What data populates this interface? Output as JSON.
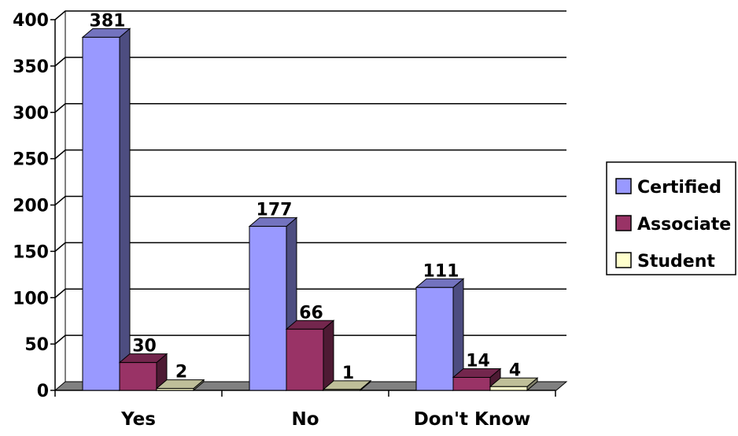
{
  "chart_data": {
    "type": "bar",
    "title": "",
    "xlabel": "",
    "ylabel": "",
    "categories": [
      "Yes",
      "No",
      "Don't Know"
    ],
    "series": [
      {
        "name": "Certified",
        "values": [
          381,
          177,
          111
        ],
        "color": "#9999FF",
        "side_color": "#4D4D80",
        "top_color": "#7373BF"
      },
      {
        "name": "Associate",
        "values": [
          30,
          66,
          14
        ],
        "color": "#993366",
        "side_color": "#4D1A33",
        "top_color": "#73264D"
      },
      {
        "name": "Student",
        "values": [
          2,
          1,
          4
        ],
        "color": "#FFFFCC",
        "side_color": "#80806A",
        "top_color": "#BFBF99"
      }
    ],
    "ylim": [
      0,
      400
    ],
    "yticks": [
      "0",
      "50",
      "100",
      "150",
      "200",
      "250",
      "300",
      "350",
      "400"
    ],
    "grid": true,
    "legend_position": "right",
    "style": "3d-clustered-column",
    "floor_color": "#808080"
  }
}
